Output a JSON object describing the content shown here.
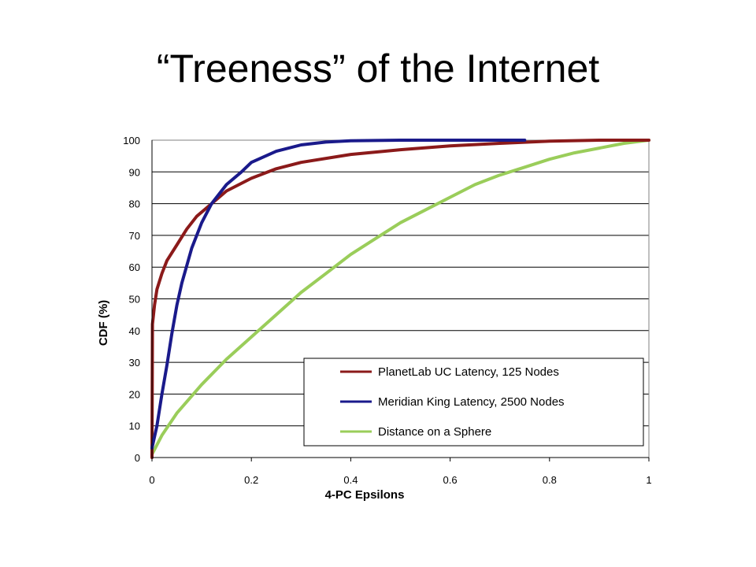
{
  "title": "“Treeness” of the Internet",
  "chart_data": {
    "type": "line",
    "xlabel": "4-PC Epsilons",
    "ylabel": "CDF (%)",
    "xlim": [
      0,
      1
    ],
    "ylim": [
      0,
      100
    ],
    "x_ticks": [
      "0",
      "0.2",
      "0.4",
      "0.6",
      "0.8",
      "1"
    ],
    "y_ticks": [
      "0",
      "10",
      "20",
      "30",
      "40",
      "50",
      "60",
      "70",
      "80",
      "90",
      "100"
    ],
    "grid": "horizontal",
    "legend_position": "bottom-right",
    "series": [
      {
        "name": "PlanetLab UC Latency, 125 Nodes",
        "color": "#8b1a1a",
        "x": [
          0,
          0.001,
          0.005,
          0.01,
          0.02,
          0.03,
          0.05,
          0.07,
          0.09,
          0.12,
          0.15,
          0.2,
          0.25,
          0.3,
          0.4,
          0.5,
          0.6,
          0.7,
          0.8,
          0.9,
          1.0
        ],
        "y": [
          0,
          42,
          48,
          53,
          58,
          62,
          67,
          72,
          76,
          80,
          84,
          88,
          91,
          93,
          95.5,
          97,
          98.2,
          99,
          99.7,
          100,
          100
        ]
      },
      {
        "name": "Meridian King Latency, 2500 Nodes",
        "color": "#1a1a8b",
        "x": [
          0,
          0.01,
          0.02,
          0.03,
          0.04,
          0.05,
          0.06,
          0.08,
          0.1,
          0.12,
          0.15,
          0.18,
          0.2,
          0.25,
          0.3,
          0.35,
          0.4,
          0.5,
          0.75
        ],
        "y": [
          3,
          10,
          20,
          29,
          39,
          48,
          55,
          66,
          74,
          80,
          86,
          90,
          93,
          96.5,
          98.5,
          99.4,
          99.8,
          100,
          100
        ]
      },
      {
        "name": "Distance on a Sphere",
        "color": "#9acd5a",
        "x": [
          0,
          0.02,
          0.05,
          0.1,
          0.15,
          0.2,
          0.25,
          0.3,
          0.35,
          0.4,
          0.45,
          0.5,
          0.55,
          0.6,
          0.65,
          0.7,
          0.75,
          0.8,
          0.85,
          0.9,
          0.95,
          1.0
        ],
        "y": [
          1,
          7,
          14,
          23,
          31,
          38,
          45,
          52,
          58,
          64,
          69,
          74,
          78,
          82,
          86,
          89,
          91.5,
          94,
          96,
          97.5,
          99,
          100
        ]
      }
    ]
  }
}
